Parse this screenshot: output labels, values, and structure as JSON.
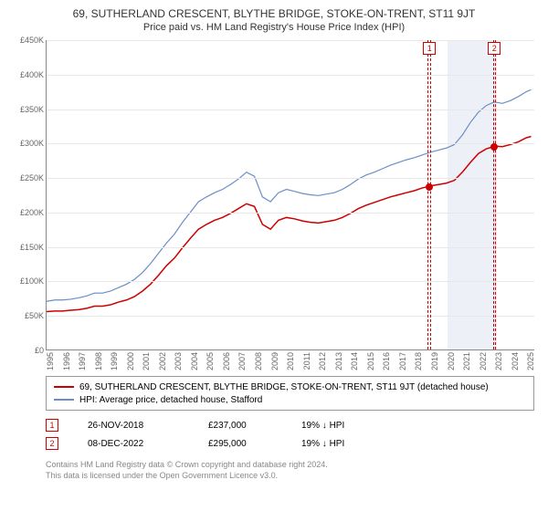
{
  "title": "69, SUTHERLAND CRESCENT, BLYTHE BRIDGE, STOKE-ON-TRENT, ST11 9JT",
  "subtitle": "Price paid vs. HM Land Registry's House Price Index (HPI)",
  "chart": {
    "type": "line",
    "ylim": [
      0,
      450000
    ],
    "ytick_step": 50000,
    "y_ticks": [
      "£0",
      "£50K",
      "£100K",
      "£150K",
      "£200K",
      "£250K",
      "£300K",
      "£350K",
      "£400K",
      "£450K"
    ],
    "xlim": [
      1995,
      2025.5
    ],
    "x_ticks": [
      "1995",
      "1996",
      "1997",
      "1998",
      "1999",
      "2000",
      "2001",
      "2002",
      "2003",
      "2004",
      "2005",
      "2006",
      "2007",
      "2008",
      "2009",
      "2010",
      "2011",
      "2012",
      "2013",
      "2014",
      "2015",
      "2016",
      "2017",
      "2018",
      "2019",
      "2020",
      "2021",
      "2022",
      "2023",
      "2024",
      "2025"
    ],
    "background_color": "#ffffff",
    "grid_color": "#e8e8e8",
    "axis_color": "#888888",
    "series": [
      {
        "name": "red",
        "color": "#cc0000",
        "width": 1.5,
        "points": [
          [
            1995,
            55000
          ],
          [
            1995.5,
            56000
          ],
          [
            1996,
            56000
          ],
          [
            1996.5,
            57000
          ],
          [
            1997,
            58000
          ],
          [
            1997.5,
            60000
          ],
          [
            1998,
            63000
          ],
          [
            1998.5,
            63000
          ],
          [
            1999,
            65000
          ],
          [
            1999.5,
            69000
          ],
          [
            2000,
            72000
          ],
          [
            2000.5,
            77000
          ],
          [
            2001,
            85000
          ],
          [
            2001.5,
            95000
          ],
          [
            2002,
            108000
          ],
          [
            2002.5,
            122000
          ],
          [
            2003,
            133000
          ],
          [
            2003.5,
            148000
          ],
          [
            2004,
            162000
          ],
          [
            2004.5,
            175000
          ],
          [
            2005,
            182000
          ],
          [
            2005.5,
            188000
          ],
          [
            2006,
            192000
          ],
          [
            2006.5,
            198000
          ],
          [
            2007,
            205000
          ],
          [
            2007.5,
            212000
          ],
          [
            2008,
            208000
          ],
          [
            2008.5,
            182000
          ],
          [
            2009,
            175000
          ],
          [
            2009.5,
            188000
          ],
          [
            2010,
            192000
          ],
          [
            2010.5,
            190000
          ],
          [
            2011,
            187000
          ],
          [
            2011.5,
            185000
          ],
          [
            2012,
            184000
          ],
          [
            2012.5,
            186000
          ],
          [
            2013,
            188000
          ],
          [
            2013.5,
            192000
          ],
          [
            2014,
            198000
          ],
          [
            2014.5,
            205000
          ],
          [
            2015,
            210000
          ],
          [
            2015.5,
            214000
          ],
          [
            2016,
            218000
          ],
          [
            2016.5,
            222000
          ],
          [
            2017,
            225000
          ],
          [
            2017.5,
            228000
          ],
          [
            2018,
            231000
          ],
          [
            2018.5,
            235000
          ],
          [
            2018.9,
            237000
          ],
          [
            2019,
            238000
          ],
          [
            2019.5,
            240000
          ],
          [
            2020,
            242000
          ],
          [
            2020.5,
            246000
          ],
          [
            2021,
            258000
          ],
          [
            2021.5,
            272000
          ],
          [
            2022,
            285000
          ],
          [
            2022.5,
            292000
          ],
          [
            2022.95,
            295000
          ],
          [
            2023,
            296000
          ],
          [
            2023.5,
            295000
          ],
          [
            2024,
            298000
          ],
          [
            2024.5,
            302000
          ],
          [
            2025,
            308000
          ],
          [
            2025.3,
            310000
          ]
        ]
      },
      {
        "name": "blue",
        "color": "#6a8fc7",
        "width": 1.2,
        "points": [
          [
            1995,
            70000
          ],
          [
            1995.5,
            72000
          ],
          [
            1996,
            72000
          ],
          [
            1996.5,
            73000
          ],
          [
            1997,
            75000
          ],
          [
            1997.5,
            78000
          ],
          [
            1998,
            82000
          ],
          [
            1998.5,
            82000
          ],
          [
            1999,
            85000
          ],
          [
            1999.5,
            90000
          ],
          [
            2000,
            95000
          ],
          [
            2000.5,
            102000
          ],
          [
            2001,
            112000
          ],
          [
            2001.5,
            125000
          ],
          [
            2002,
            140000
          ],
          [
            2002.5,
            155000
          ],
          [
            2003,
            168000
          ],
          [
            2003.5,
            185000
          ],
          [
            2004,
            200000
          ],
          [
            2004.5,
            215000
          ],
          [
            2005,
            222000
          ],
          [
            2005.5,
            228000
          ],
          [
            2006,
            233000
          ],
          [
            2006.5,
            240000
          ],
          [
            2007,
            248000
          ],
          [
            2007.5,
            258000
          ],
          [
            2008,
            252000
          ],
          [
            2008.5,
            222000
          ],
          [
            2009,
            215000
          ],
          [
            2009.5,
            228000
          ],
          [
            2010,
            233000
          ],
          [
            2010.5,
            230000
          ],
          [
            2011,
            227000
          ],
          [
            2011.5,
            225000
          ],
          [
            2012,
            224000
          ],
          [
            2012.5,
            226000
          ],
          [
            2013,
            228000
          ],
          [
            2013.5,
            233000
          ],
          [
            2014,
            240000
          ],
          [
            2014.5,
            248000
          ],
          [
            2015,
            254000
          ],
          [
            2015.5,
            258000
          ],
          [
            2016,
            263000
          ],
          [
            2016.5,
            268000
          ],
          [
            2017,
            272000
          ],
          [
            2017.5,
            276000
          ],
          [
            2018,
            279000
          ],
          [
            2018.5,
            283000
          ],
          [
            2019,
            287000
          ],
          [
            2019.5,
            290000
          ],
          [
            2020,
            293000
          ],
          [
            2020.5,
            298000
          ],
          [
            2021,
            312000
          ],
          [
            2021.5,
            330000
          ],
          [
            2022,
            345000
          ],
          [
            2022.5,
            355000
          ],
          [
            2023,
            360000
          ],
          [
            2023.5,
            358000
          ],
          [
            2024,
            362000
          ],
          [
            2024.5,
            368000
          ],
          [
            2025,
            375000
          ],
          [
            2025.3,
            378000
          ]
        ]
      }
    ],
    "sale_markers": [
      {
        "idx": "1",
        "x": 2018.9,
        "y": 237000,
        "band_start": 2018.8,
        "band_end": 2019.0,
        "border_color": "#cc0000"
      },
      {
        "idx": "2",
        "x": 2022.95,
        "y": 295000,
        "band_start": 2022.85,
        "band_end": 2023.05,
        "border_color": "#cc0000"
      }
    ],
    "forecast_band": {
      "start": 2020.0,
      "end": 2023.1,
      "fill": "#eef0f7"
    },
    "dot_color": "#cc0000"
  },
  "legend": {
    "items": [
      {
        "color": "#cc0000",
        "label": "69, SUTHERLAND CRESCENT, BLYTHE BRIDGE, STOKE-ON-TRENT, ST11 9JT (detached house)"
      },
      {
        "color": "#6a8fc7",
        "label": "HPI: Average price, detached house, Stafford"
      }
    ]
  },
  "sales": [
    {
      "idx": "1",
      "date": "26-NOV-2018",
      "price": "£237,000",
      "pct": "19%",
      "dir": "↓",
      "ref": "HPI",
      "border_color": "#cc0000"
    },
    {
      "idx": "2",
      "date": "08-DEC-2022",
      "price": "£295,000",
      "pct": "19%",
      "dir": "↓",
      "ref": "HPI",
      "border_color": "#cc0000"
    }
  ],
  "footer": {
    "line1": "Contains HM Land Registry data © Crown copyright and database right 2024.",
    "line2": "This data is licensed under the Open Government Licence v3.0.",
    "color": "#888888"
  }
}
